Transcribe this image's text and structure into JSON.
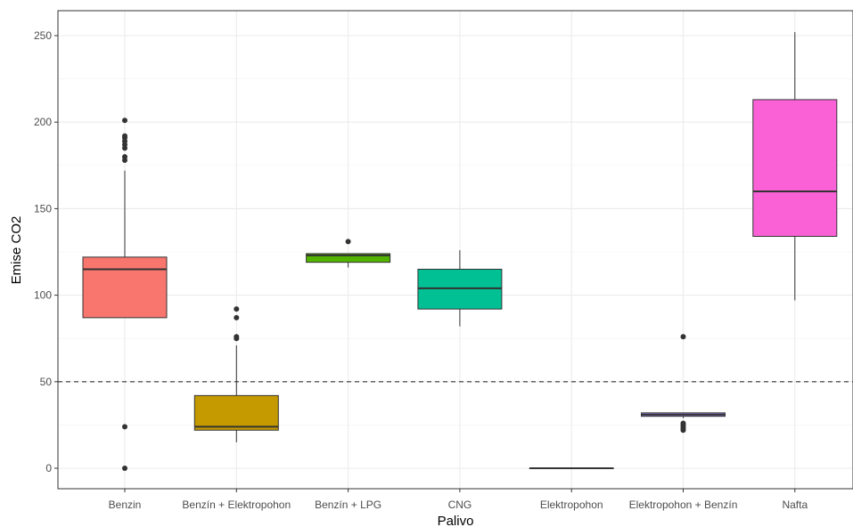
{
  "chart_data": {
    "type": "boxplot",
    "title": "",
    "xlabel": "Palivo",
    "ylabel": "Emise CO2",
    "ylim": [
      -12,
      264
    ],
    "yticks": [
      0,
      50,
      100,
      150,
      200,
      250
    ],
    "grid": true,
    "legend": "none",
    "reference_line": {
      "y": 50,
      "style": "dashed"
    },
    "categories": [
      "Benzin",
      "Benzín + Elektropohon",
      "Benzín + LPG",
      "CNG",
      "Elektropohon",
      "Elektropohon + Benzín",
      "Nafta"
    ],
    "boxes": [
      {
        "category": "Benzin",
        "color": "#F8766D",
        "lower_whisker": 87,
        "q1": 87,
        "median": 115,
        "q3": 122,
        "upper_whisker": 172,
        "outliers": [
          178,
          180,
          185,
          187,
          189,
          191,
          192,
          201,
          24,
          0
        ]
      },
      {
        "category": "Benzín + Elektropohon",
        "color": "#C49A00",
        "lower_whisker": 15,
        "q1": 22,
        "median": 24,
        "q3": 42,
        "upper_whisker": 71,
        "outliers": [
          76,
          75,
          87,
          92
        ]
      },
      {
        "category": "Benzín + LPG",
        "color": "#53B400",
        "lower_whisker": 116,
        "q1": 119,
        "median": 123,
        "q3": 124,
        "upper_whisker": 124,
        "outliers": [
          131
        ]
      },
      {
        "category": "CNG",
        "color": "#00C094",
        "lower_whisker": 82,
        "q1": 92,
        "median": 104,
        "q3": 115,
        "upper_whisker": 126,
        "outliers": []
      },
      {
        "category": "Elektropohon",
        "color": "#00B6EB",
        "lower_whisker": 0,
        "q1": 0,
        "median": 0,
        "q3": 0,
        "upper_whisker": 0,
        "outliers": []
      },
      {
        "category": "Elektropohon + Benzín",
        "color": "#A58AFF",
        "lower_whisker": 29,
        "q1": 30,
        "median": 31,
        "q3": 32,
        "upper_whisker": 32,
        "outliers": [
          76,
          22,
          23,
          24,
          25,
          26
        ]
      },
      {
        "category": "Nafta",
        "color": "#FB61D7",
        "lower_whisker": 97,
        "q1": 134,
        "median": 160,
        "q3": 213,
        "upper_whisker": 252,
        "outliers": []
      }
    ]
  }
}
